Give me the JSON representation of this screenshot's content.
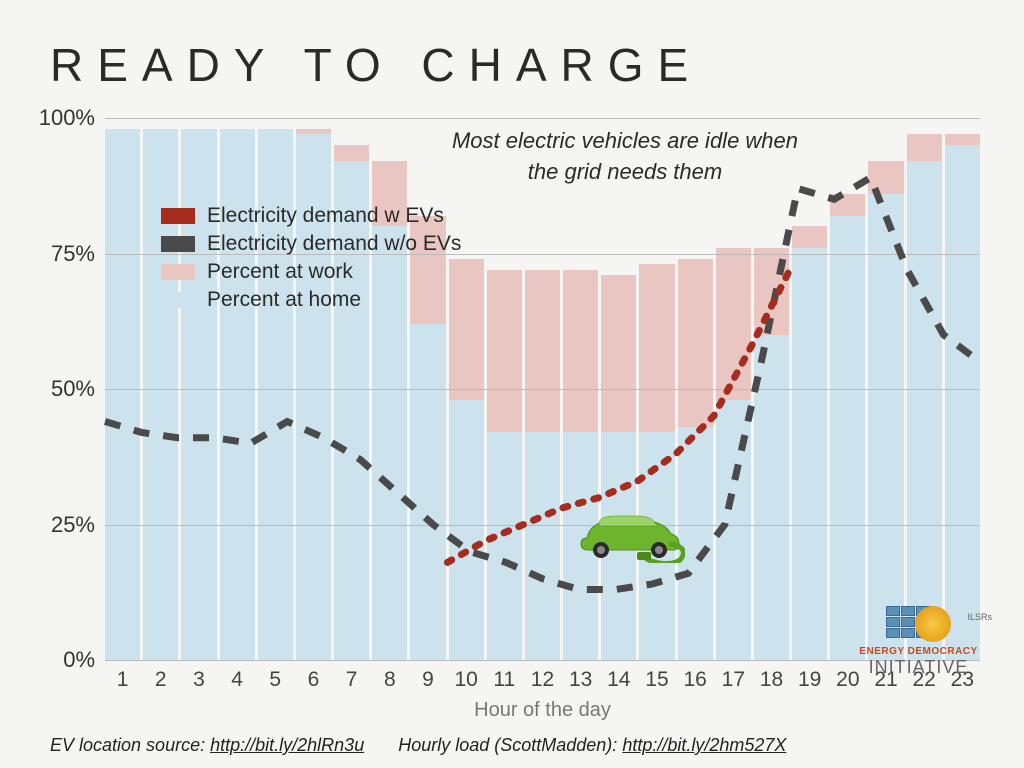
{
  "title": "READY TO CHARGE",
  "subtitle_line1": "Most electric vehicles are idle when",
  "subtitle_line2": "the grid needs them",
  "xaxis_title": "Hour of the day",
  "chart": {
    "type": "bar+line",
    "ylim": [
      0,
      100
    ],
    "ytick_step": 25,
    "yticks": [
      "0%",
      "25%",
      "50%",
      "75%",
      "100%"
    ],
    "hours": [
      "1",
      "2",
      "3",
      "4",
      "5",
      "6",
      "7",
      "8",
      "9",
      "10",
      "11",
      "12",
      "13",
      "14",
      "15",
      "16",
      "17",
      "18",
      "19",
      "20",
      "21",
      "22",
      "23"
    ],
    "percent_at_home": [
      98,
      98,
      98,
      98,
      98,
      97,
      92,
      80,
      62,
      48,
      42,
      42,
      42,
      42,
      42,
      43,
      48,
      60,
      76,
      82,
      86,
      92,
      95,
      96
    ],
    "percent_at_work": [
      0,
      0,
      0,
      0,
      0,
      1,
      3,
      12,
      20,
      26,
      30,
      30,
      30,
      29,
      31,
      31,
      28,
      16,
      4,
      4,
      6,
      5,
      2,
      1
    ],
    "demand_wo_ev": [
      44,
      42,
      41,
      41,
      40,
      44,
      41,
      37,
      31,
      25,
      20,
      18,
      15,
      13,
      13,
      14,
      16,
      25,
      55,
      87,
      85,
      89,
      72,
      60,
      55
    ],
    "demand_w_ev": [
      null,
      null,
      null,
      null,
      null,
      null,
      null,
      null,
      null,
      18,
      22,
      25,
      28,
      30,
      33,
      38,
      45,
      58,
      72,
      null,
      null,
      null,
      null,
      null
    ],
    "colors": {
      "home": "#cce2ec",
      "work": "#e9c6c2",
      "wo_ev": "#4a4a4a",
      "w_ev": "#a62c1e",
      "grid": "#bbbbbb",
      "bg": "#f5f5f3"
    },
    "line_width": 7,
    "dash": "16 14",
    "dot_dash": "5 11"
  },
  "legend": [
    {
      "label": "Electricity demand w EVs",
      "color": "#a62c1e"
    },
    {
      "label": "Electricity demand w/o EVs",
      "color": "#4a4a4a"
    },
    {
      "label": "Percent at work",
      "color": "#e9c6c2"
    },
    {
      "label": "Percent at home",
      "color": "#cce2ec"
    }
  ],
  "sources": {
    "loc_label": "EV location source:",
    "loc_url": "http://bit.ly/2hlRn3u",
    "load_label": "Hourly load (ScottMadden):",
    "load_url": "http://bit.ly/2hm527X"
  },
  "logo": {
    "line1": "ENERGY DEMOCRACY",
    "line2": "INITIATIVE",
    "tag": "ILSRs"
  }
}
